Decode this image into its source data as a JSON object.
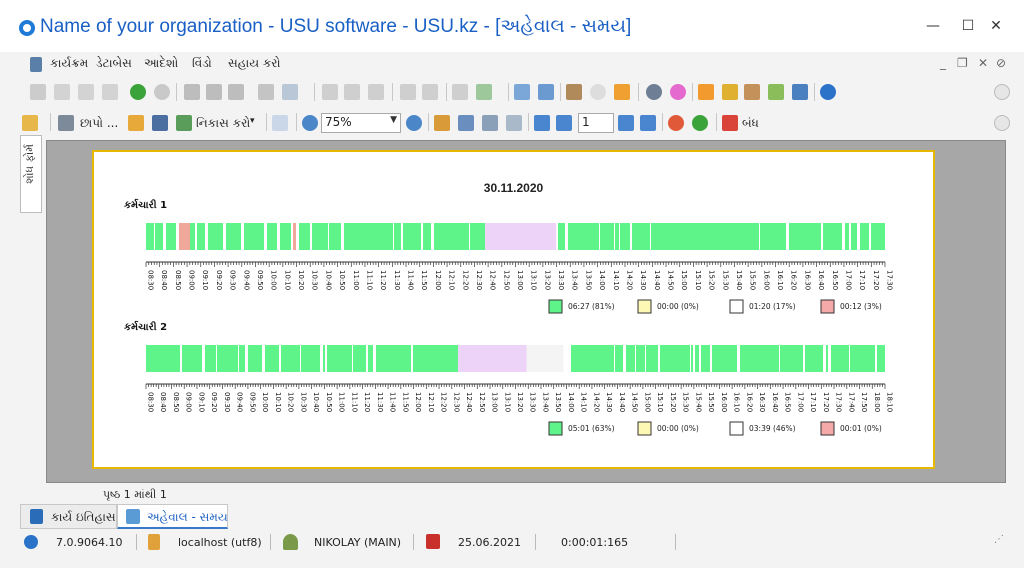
{
  "window": {
    "title": "Name of your organization - USU software - USU.kz - [અહેવાલ - સમય]",
    "minimize": "—",
    "maximize": "☐",
    "close": "✕"
  },
  "menu": [
    "કાર્યક્રમ",
    "ડેટાબેસ",
    "આદેશો",
    "વિંડો",
    "સહાય કરો"
  ],
  "toolbar2": {
    "print_label": "છાપો ...",
    "export_label": "નિકાસ કરો",
    "zoom_value": "75%",
    "page_value": "1",
    "close_label": "બંધ"
  },
  "side_tab": "શોધ ફોર્મ",
  "report": {
    "date": "30.11.2020",
    "employees": [
      {
        "name": "કર્મચારી 1",
        "ticks": [
          "08:30",
          "08:40",
          "08:50",
          "09:00",
          "09:10",
          "09:20",
          "09:30",
          "09:40",
          "09:50",
          "10:00",
          "10:10",
          "10:20",
          "10:30",
          "10:40",
          "10:50",
          "11:00",
          "11:10",
          "11:20",
          "11:30",
          "11:40",
          "11:50",
          "12:00",
          "12:10",
          "12:20",
          "12:30",
          "12:40",
          "12:50",
          "13:00",
          "13:10",
          "13:20",
          "13:30",
          "13:40",
          "13:50",
          "14:00",
          "14:10",
          "14:20",
          "14:30",
          "14:40",
          "14:50",
          "15:00",
          "15:10",
          "15:20",
          "15:30",
          "15:40",
          "15:50",
          "16:00",
          "16:10",
          "16:20",
          "16:30",
          "16:40",
          "16:50",
          "17:00",
          "17:10",
          "17:20",
          "17:30"
        ],
        "legend": [
          "06:27 (81%)",
          "00:00 (0%)",
          "01:20 (17%)",
          "00:12 (3%)"
        ]
      },
      {
        "name": "કર્મચારી 2",
        "ticks": [
          "08:30",
          "08:40",
          "08:50",
          "09:00",
          "09:10",
          "09:20",
          "09:30",
          "09:40",
          "09:50",
          "10:00",
          "10:10",
          "10:20",
          "10:30",
          "10:40",
          "10:50",
          "11:00",
          "11:10",
          "11:20",
          "11:30",
          "11:40",
          "11:50",
          "12:00",
          "12:10",
          "12:20",
          "12:30",
          "12:40",
          "12:50",
          "13:00",
          "13:10",
          "13:20",
          "13:30",
          "13:40",
          "13:50",
          "14:00",
          "14:10",
          "14:20",
          "14:30",
          "14:40",
          "14:50",
          "15:00",
          "15:10",
          "15:20",
          "15:30",
          "15:40",
          "15:50",
          "16:00",
          "16:10",
          "16:20",
          "16:30",
          "16:40",
          "16:50",
          "17:00",
          "17:10",
          "17:20",
          "17:30",
          "17:40",
          "17:50",
          "18:00",
          "18:10"
        ],
        "legend": [
          "05:01 (63%)",
          "00:00 (0%)",
          "03:39 (46%)",
          "00:01 (0%)"
        ]
      }
    ],
    "legend_colors": [
      "#5ef48a",
      "#fdf8b4",
      "#ffffff",
      "#f5a9a9"
    ],
    "colors": {
      "active": "#5ef48a",
      "break": "#ecd3f7",
      "reddish": "#f0a89a",
      "idle": "#f4f4f4"
    },
    "page_info": "પૃષ્ઠ 1 માંથી 1"
  },
  "tabs": [
    "કાર્ય ઇતિહાસ",
    "અહેવાલ - સમય"
  ],
  "status": {
    "version": "7.0.9064.10",
    "db": "localhost (utf8)",
    "user": "NIKOLAY (MAIN)",
    "date": "25.06.2021",
    "timer": "0:00:01:165"
  }
}
